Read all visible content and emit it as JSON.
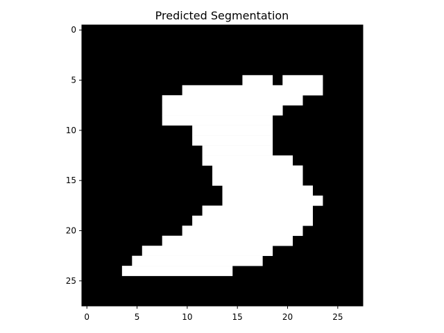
{
  "chart_data": {
    "type": "heatmap",
    "title": "Predicted Segmentation",
    "xlabel": "",
    "ylabel": "",
    "xlim": [
      -0.5,
      27.5
    ],
    "ylim": [
      27.5,
      -0.5
    ],
    "xticks": [
      0,
      5,
      10,
      15,
      20,
      25
    ],
    "yticks": [
      0,
      5,
      10,
      15,
      20,
      25
    ],
    "colormap": {
      "0": "#000000",
      "1": "#ffffff"
    },
    "grid": false,
    "width": 28,
    "height": 28,
    "mask_rows": [
      "0000000000000000000000000000",
      "0000000000000000000000000000",
      "0000000000000000000000000000",
      "0000000000000000000000000000",
      "0000000000000000000000000000",
      "0000000000000000111011110000",
      "0000000000111111111111110000",
      "0000000011111111111111000000",
      "0000000011111111111100000000",
      "0000000011111111111000000000",
      "0000000000011111111000000000",
      "0000000000011111111000000000",
      "0000000000001111111000000000",
      "0000000000001111111110000000",
      "0000000000000111111111000000",
      "0000000000000111111111000000",
      "0000000000000011111111100000",
      "0000000000000011111111110000",
      "0000000000001111111111100000",
      "0000000000011111111111100000",
      "0000000000111111111111000000",
      "0000000011111111111110000000",
      "0000001111111111111000000000",
      "0000011111111111110000000000",
      "0000111111111110000000000000",
      "0000000000000000000000000000",
      "0000000000000000000000000000",
      "0000000000000000000000000000"
    ]
  }
}
